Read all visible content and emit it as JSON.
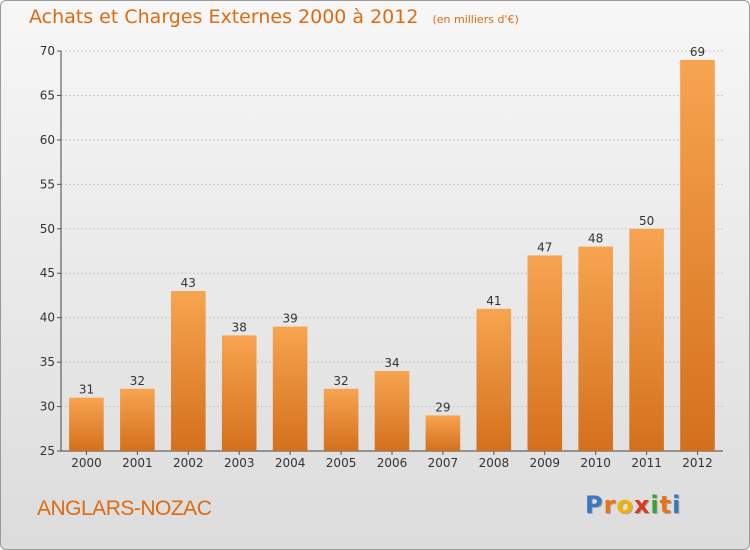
{
  "header": {
    "title": "Achats et Charges Externes 2000 à 2012",
    "unit": "(en milliers d'€)"
  },
  "footer": {
    "place": "ANGLARS-NOZAC",
    "brand": "Proxiti"
  },
  "colors": {
    "accent": "#e06a10",
    "bar_top": "#f7a450",
    "bar_bottom": "#d4701c",
    "brand_letters": [
      "#3a78c2",
      "#e8741a",
      "#f0b400",
      "#d93a1e",
      "#3aa03a",
      "#e8741a",
      "#3a78c2"
    ]
  },
  "chart_data": {
    "type": "bar",
    "categories": [
      "2000",
      "2001",
      "2002",
      "2003",
      "2004",
      "2005",
      "2006",
      "2007",
      "2008",
      "2009",
      "2010",
      "2011",
      "2012"
    ],
    "values": [
      31,
      32,
      43,
      38,
      39,
      32,
      34,
      29,
      41,
      47,
      48,
      50,
      69
    ],
    "title": "Achats et Charges Externes 2000 à 2012",
    "subtitle": "(en milliers d'€)",
    "xlabel": "",
    "ylabel": "",
    "ylim": [
      25,
      70
    ],
    "yticks": [
      25,
      30,
      35,
      40,
      45,
      50,
      55,
      60,
      65,
      70
    ],
    "grid": true,
    "data_labels": true,
    "legend": "none"
  }
}
